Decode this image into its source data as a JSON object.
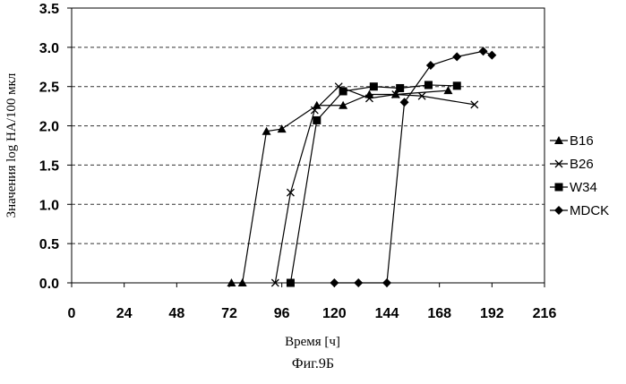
{
  "chart_data": {
    "type": "line",
    "xlabel": "Время [ч]",
    "ylabel": "Значения log HA/100 мкл",
    "xlim": [
      0,
      216
    ],
    "ylim": [
      0,
      3.5
    ],
    "xticks": [
      0,
      24,
      48,
      72,
      96,
      120,
      144,
      168,
      192,
      216
    ],
    "yticks": [
      0.0,
      0.5,
      1.0,
      1.5,
      2.0,
      2.5,
      3.0,
      3.5
    ],
    "ytick_labels": [
      "0.0",
      "0.5",
      "1.0",
      "1.5",
      "2.0",
      "2.5",
      "3.0",
      "3.5"
    ],
    "grid": "horizontal dashed",
    "legend_position": "right",
    "series": [
      {
        "name": "B16",
        "marker": "triangle",
        "points": [
          [
            73,
            0
          ],
          [
            78,
            0
          ],
          [
            89,
            1.93
          ],
          [
            96,
            1.96
          ],
          [
            112,
            2.26
          ],
          [
            124,
            2.26
          ],
          [
            136,
            2.4
          ],
          [
            148,
            2.4
          ],
          [
            172,
            2.45
          ]
        ]
      },
      {
        "name": "B26",
        "marker": "x",
        "points": [
          [
            93,
            0
          ],
          [
            100,
            1.15
          ],
          [
            111,
            2.2
          ],
          [
            122,
            2.5
          ],
          [
            136,
            2.35
          ],
          [
            148,
            2.4
          ],
          [
            160,
            2.38
          ],
          [
            184,
            2.27
          ]
        ]
      },
      {
        "name": "W34",
        "marker": "square",
        "points": [
          [
            100,
            0
          ],
          [
            112,
            2.07
          ],
          [
            124,
            2.44
          ],
          [
            138,
            2.5
          ],
          [
            150,
            2.48
          ],
          [
            163,
            2.52
          ],
          [
            176,
            2.51
          ]
        ]
      },
      {
        "name": "MDCK",
        "marker": "diamond",
        "points": [
          [
            120,
            0
          ],
          [
            131,
            0
          ],
          [
            144,
            0
          ],
          [
            152,
            2.3
          ],
          [
            164,
            2.77
          ],
          [
            176,
            2.88
          ],
          [
            188,
            2.95
          ],
          [
            192,
            2.9
          ]
        ]
      }
    ]
  },
  "caption": "Фиг.9Б"
}
